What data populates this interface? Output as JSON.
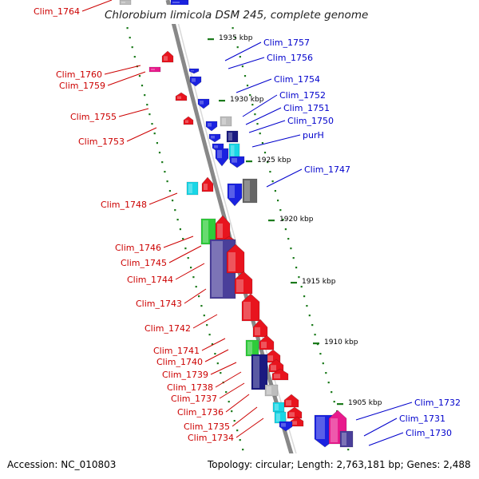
{
  "title": "Chlorobium limicola DSM 245, complete genome",
  "accession": "Accession: NC_010803",
  "topology": "Topology: circular; Length: 2,763,181 bp; Genes: 2,488",
  "kbp_marks": [
    "1935 kbp",
    "1930 kbp",
    "1925 kbp",
    "1920 kbp",
    "1915 kbp",
    "1910 kbp",
    "1905 kbp"
  ],
  "left_genes": [
    "Clim_1764",
    "Clim_1760",
    "Clim_1759",
    "Clim_1755",
    "Clim_1753",
    "Clim_1748",
    "Clim_1746",
    "Clim_1745",
    "Clim_1744",
    "Clim_1743",
    "Clim_1742",
    "Clim_1741",
    "Clim_1740",
    "Clim_1739",
    "Clim_1738",
    "Clim_1737",
    "Clim_1736",
    "Clim_1735",
    "Clim_1734"
  ],
  "right_genes": [
    "Clim_1757",
    "Clim_1756",
    "Clim_1754",
    "Clim_1752",
    "Clim_1751",
    "Clim_1750",
    "purH",
    "Clim_1747",
    "Clim_1732",
    "Clim_1731",
    "Clim_1730"
  ],
  "colors": {
    "forward": "#e8141e",
    "reverse": "#1a22e0",
    "navy": "#1a1a80",
    "slate": "#4a3f9a",
    "cyan": "#19d6e6",
    "green": "#2ecc3a",
    "magenta": "#e81a8c",
    "gray": "#bdbdbd",
    "darkgray": "#666666",
    "backbone": "#888888",
    "tick": "#1b7a1b",
    "left_label": "#cc0000",
    "right_label": "#0000cc"
  }
}
